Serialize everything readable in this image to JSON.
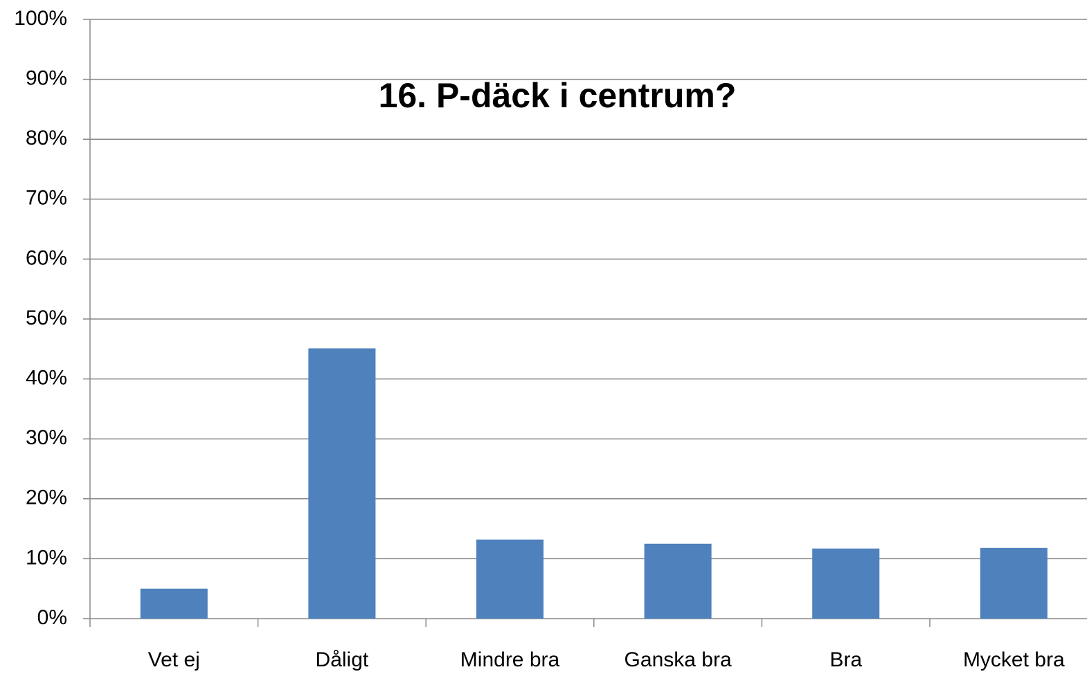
{
  "chart_data": {
    "type": "bar",
    "title": "16. P-däck i centrum?",
    "categories": [
      "Vet ej",
      "Dåligt",
      "Mindre bra",
      "Ganska bra",
      "Bra",
      "Mycket bra"
    ],
    "values": [
      5.0,
      45.1,
      13.2,
      12.5,
      11.7,
      11.8
    ],
    "color": "#4f81bd",
    "ylim": [
      0,
      100
    ],
    "yticks": [
      {
        "value": 0,
        "label": "0%"
      },
      {
        "value": 10,
        "label": "10%"
      },
      {
        "value": 20,
        "label": "20%"
      },
      {
        "value": 30,
        "label": "30%"
      },
      {
        "value": 40,
        "label": "40%"
      },
      {
        "value": 50,
        "label": "50%"
      },
      {
        "value": 60,
        "label": "60%"
      },
      {
        "value": 70,
        "label": "70%"
      },
      {
        "value": 80,
        "label": "80%"
      },
      {
        "value": 90,
        "label": "90%"
      },
      {
        "value": 100,
        "label": "100%"
      }
    ],
    "grid": true
  }
}
